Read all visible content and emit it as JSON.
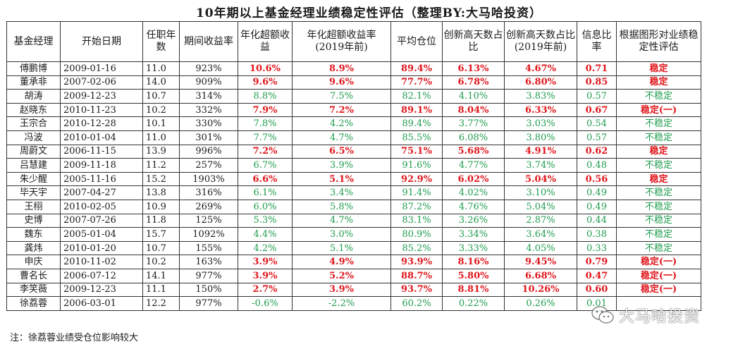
{
  "title": "10年期以上基金经理业绩稳定性评估（整理BY:大马哈投资）",
  "header": [
    "基金经理",
    "开始日期",
    "任职年数",
    "期间收益率",
    "年化超额收益",
    "年化超额收益率(2019年前)",
    "平均仓位",
    "创新高天数占比",
    "创新高天数占比(2019年前)",
    "信息比率",
    "根据图形对业绩稳定性评估"
  ],
  "rows": [
    {
      "name": "傅鹏博",
      "start": "2009-01-16",
      "years": "11.0",
      "ret": "923%",
      "ann": "10.6%",
      "ann2019": "8.9%",
      "pos": "89.4%",
      "nh": "6.13%",
      "nh2019": "4.67%",
      "ir": "0.71",
      "eval": "稳定",
      "stable": true
    },
    {
      "name": "董承非",
      "start": "2007-02-06",
      "years": "14.0",
      "ret": "909%",
      "ann": "9.6%",
      "ann2019": "9.6%",
      "pos": "77.7%",
      "nh": "6.78%",
      "nh2019": "6.80%",
      "ir": "0.85",
      "eval": "稳定",
      "stable": true
    },
    {
      "name": "胡涛",
      "start": "2009-12-23",
      "years": "10.7",
      "ret": "314%",
      "ann": "8.8%",
      "ann2019": "7.5%",
      "pos": "82.1%",
      "nh": "4.10%",
      "nh2019": "3.83%",
      "ir": "0.57",
      "eval": "不稳定",
      "stable": false
    },
    {
      "name": "赵晓东",
      "start": "2010-11-23",
      "years": "10.2",
      "ret": "332%",
      "ann": "7.9%",
      "ann2019": "7.2%",
      "pos": "89.1%",
      "nh": "8.04%",
      "nh2019": "6.33%",
      "ir": "0.67",
      "eval": "稳定(一)",
      "stable": true
    },
    {
      "name": "王宗合",
      "start": "2010-12-28",
      "years": "10.1",
      "ret": "330%",
      "ann": "7.8%",
      "ann2019": "4.2%",
      "pos": "89.4%",
      "nh": "3.77%",
      "nh2019": "3.03%",
      "ir": "0.54",
      "eval": "不稳定",
      "stable": false
    },
    {
      "name": "冯波",
      "start": "2010-01-04",
      "years": "11.0",
      "ret": "301%",
      "ann": "7.7%",
      "ann2019": "4.7%",
      "pos": "85.5%",
      "nh": "6.08%",
      "nh2019": "3.80%",
      "ir": "0.57",
      "eval": "不稳定",
      "stable": false
    },
    {
      "name": "周蔚文",
      "start": "2006-11-15",
      "years": "13.9",
      "ret": "996%",
      "ann": "7.2%",
      "ann2019": "6.5%",
      "pos": "75.1%",
      "nh": "5.68%",
      "nh2019": "4.91%",
      "ir": "0.62",
      "eval": "稳定",
      "stable": true
    },
    {
      "name": "吕慧建",
      "start": "2009-11-18",
      "years": "11.2",
      "ret": "257%",
      "ann": "6.7%",
      "ann2019": "3.9%",
      "pos": "91.6%",
      "nh": "4.77%",
      "nh2019": "3.74%",
      "ir": "0.48",
      "eval": "不稳定",
      "stable": false
    },
    {
      "name": "朱少醒",
      "start": "2005-11-16",
      "years": "15.2",
      "ret": "1903%",
      "ann": "6.6%",
      "ann2019": "5.1%",
      "pos": "92.9%",
      "nh": "6.02%",
      "nh2019": "5.04%",
      "ir": "0.56",
      "eval": "稳定",
      "stable": true
    },
    {
      "name": "毕天宇",
      "start": "2007-04-27",
      "years": "13.8",
      "ret": "316%",
      "ann": "6.1%",
      "ann2019": "3.4%",
      "pos": "91.4%",
      "nh": "4.02%",
      "nh2019": "3.10%",
      "ir": "0.49",
      "eval": "不稳定",
      "stable": false
    },
    {
      "name": "王栩",
      "start": "2010-02-05",
      "years": "10.9",
      "ret": "269%",
      "ann": "6.0%",
      "ann2019": "5.8%",
      "pos": "87.2%",
      "nh": "4.76%",
      "nh2019": "5.04%",
      "ir": "0.49",
      "eval": "不稳定",
      "stable": false
    },
    {
      "name": "史博",
      "start": "2007-07-26",
      "years": "11.8",
      "ret": "125%",
      "ann": "5.3%",
      "ann2019": "4.7%",
      "pos": "83.1%",
      "nh": "3.26%",
      "nh2019": "2.87%",
      "ir": "0.44",
      "eval": "不稳定",
      "stable": false
    },
    {
      "name": "魏东",
      "start": "2005-01-04",
      "years": "15.7",
      "ret": "1092%",
      "ann": "4.4%",
      "ann2019": "3.0%",
      "pos": "80.9%",
      "nh": "3.34%",
      "nh2019": "3.64%",
      "ir": "0.38",
      "eval": "不稳定",
      "stable": false
    },
    {
      "name": "龚炜",
      "start": "2010-01-20",
      "years": "10.7",
      "ret": "155%",
      "ann": "4.2%",
      "ann2019": "5.1%",
      "pos": "85.2%",
      "nh": "3.33%",
      "nh2019": "4.05%",
      "ir": "0.33",
      "eval": "不稳定",
      "stable": false
    },
    {
      "name": "申庆",
      "start": "2010-11-02",
      "years": "10.2",
      "ret": "163%",
      "ann": "3.9%",
      "ann2019": "4.9%",
      "pos": "93.9%",
      "nh": "8.16%",
      "nh2019": "9.45%",
      "ir": "0.79",
      "eval": "稳定(一)",
      "stable": true
    },
    {
      "name": "曹名长",
      "start": "2006-07-12",
      "years": "14.1",
      "ret": "977%",
      "ann": "3.9%",
      "ann2019": "5.2%",
      "pos": "88.7%",
      "nh": "5.80%",
      "nh2019": "6.68%",
      "ir": "0.47",
      "eval": "稳定(一)",
      "stable": true
    },
    {
      "name": "李笑薇",
      "start": "2009-12-23",
      "years": "11.1",
      "ret": "150%",
      "ann": "2.7%",
      "ann2019": "3.9%",
      "pos": "93.7%",
      "nh": "8.81%",
      "nh2019": "10.26%",
      "ir": "0.60",
      "eval": "稳定(一)",
      "stable": true
    },
    {
      "name": "徐荔蓉",
      "start": "2006-03-01",
      "years": "12.2",
      "ret": "977%",
      "ann": "-0.6%",
      "ann2019": "-2.2%",
      "pos": "60.2%",
      "nh": "0.22%",
      "nh2019": "0.26%",
      "ir": "0.01",
      "eval": "",
      "stable": false
    }
  ],
  "note": "注：徐荔蓉业绩受仓位影响较大",
  "watermark": {
    "text": "大马哈投资",
    "icon": "wechat-icon"
  },
  "colors": {
    "red": "#e0161c",
    "green": "#1f9c4e"
  }
}
